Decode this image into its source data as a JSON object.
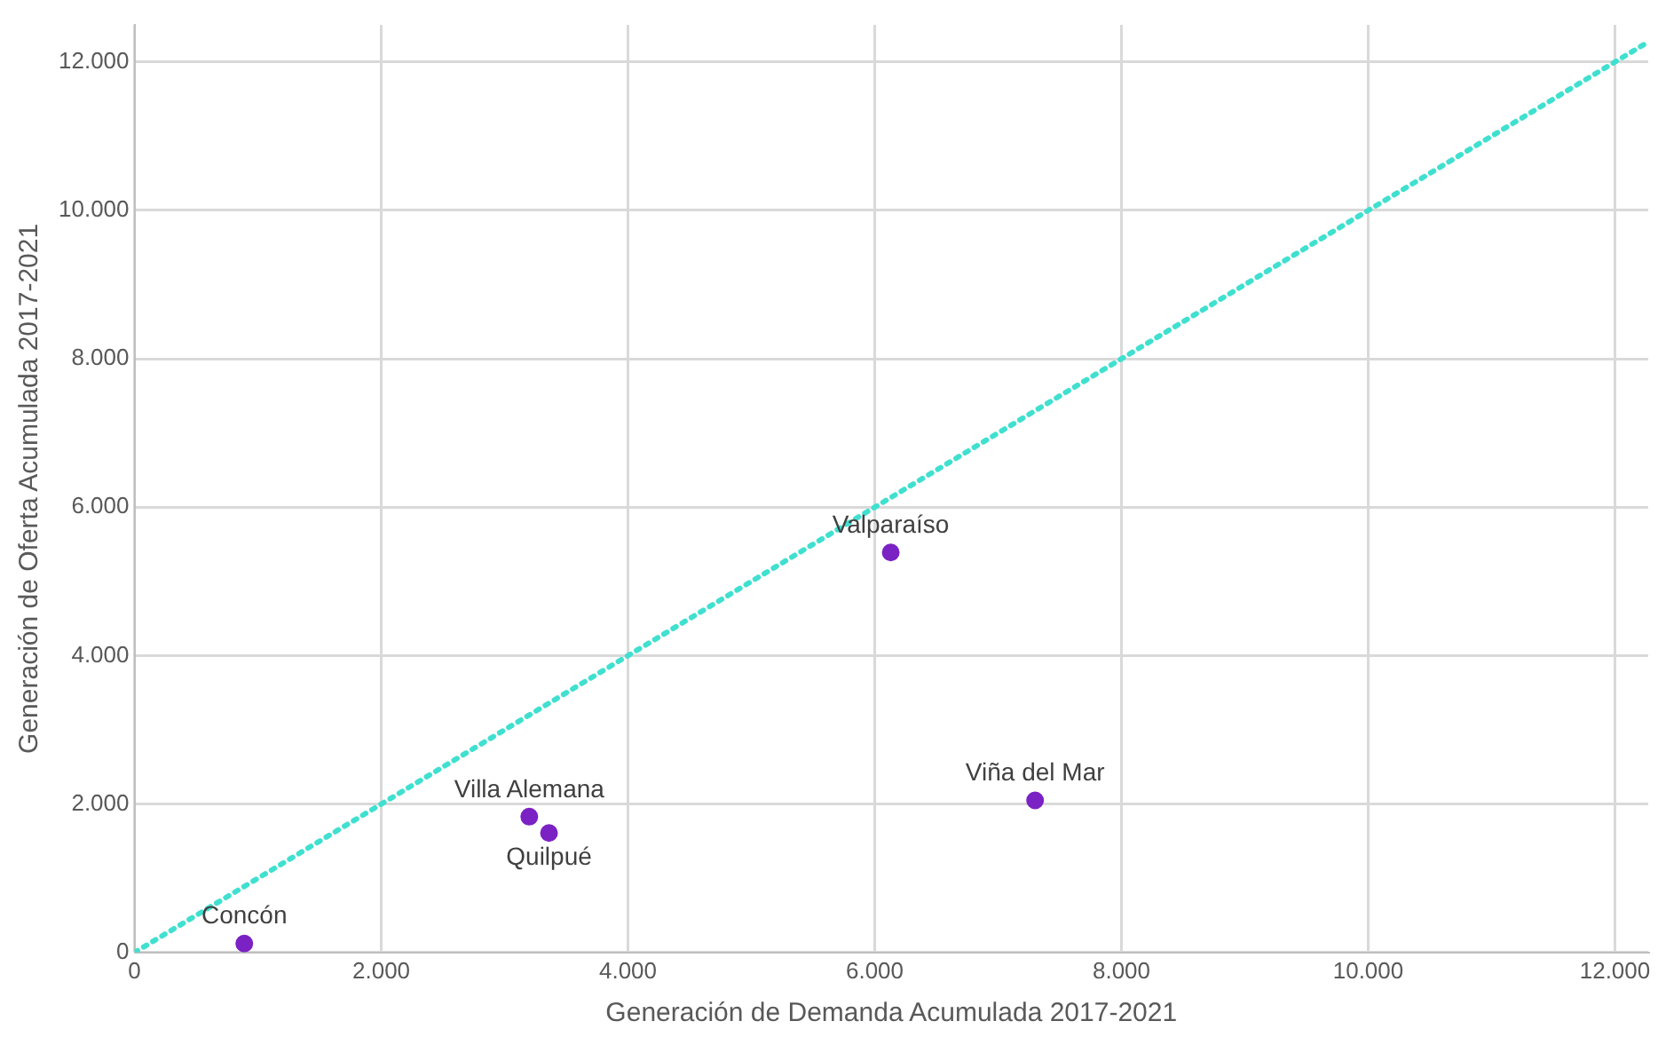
{
  "chart_data": {
    "type": "scatter",
    "xlabel": "Generación de Demanda Acumulada 2017-2021",
    "ylabel": "Generación de Oferta Acumulada 2017-2021",
    "x": [
      890,
      3200,
      3360,
      6130,
      7300
    ],
    "series": [
      {
        "type": "scatter",
        "color": "#7b22c4",
        "values": [
          120,
          1830,
          1610,
          5390,
          2050
        ],
        "marker": "circle"
      },
      {
        "type": "line",
        "color": "#40e0d0",
        "x": [
          0,
          12270
        ],
        "values": [
          0,
          12270
        ],
        "line_style": "dotted",
        "marker": "none"
      }
    ],
    "annotations": [
      {
        "text": "Concón",
        "x": 890,
        "y": 120
      },
      {
        "text": "Villa Alemana",
        "x": 3200,
        "y": 1830
      },
      {
        "text": "Quilpué",
        "x": 3360,
        "y": 1610
      },
      {
        "text": "Valparaíso",
        "x": 6130,
        "y": 5390
      },
      {
        "text": "Viña del Mar",
        "x": 7300,
        "y": 2050
      }
    ],
    "xlim": [
      0,
      12270
    ],
    "ylim": [
      0,
      12500
    ],
    "xticks": [
      0,
      {
        "value": 2000,
        "label": "2.000"
      },
      {
        "value": 4000,
        "label": "4.000"
      },
      {
        "value": 6000,
        "label": "6.000"
      },
      {
        "value": 8000,
        "label": "8.000"
      },
      {
        "value": 10000,
        "label": "10.000"
      },
      {
        "value": 12000,
        "label": "12.000"
      }
    ],
    "yticks": [
      0,
      {
        "value": 2000,
        "label": "2.000"
      },
      {
        "value": 4000,
        "label": "4.000"
      },
      {
        "value": 6000,
        "label": "6.000"
      },
      {
        "value": 8000,
        "label": "8.000"
      },
      {
        "value": 10000,
        "label": "10.000"
      },
      {
        "value": 12000,
        "label": "12.000"
      }
    ],
    "grid": true,
    "legend": false
  }
}
